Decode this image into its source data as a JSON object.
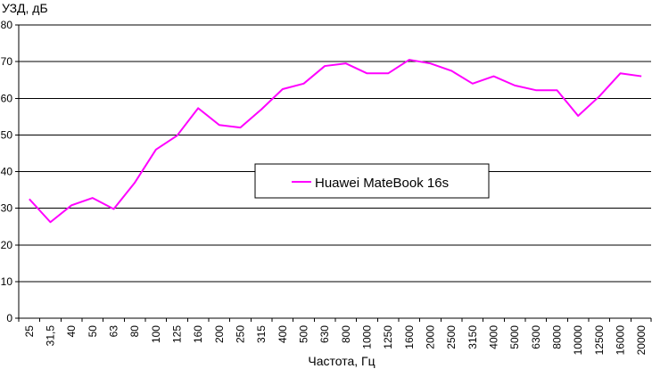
{
  "chart_data": {
    "type": "line",
    "title": "",
    "xlabel": "Частота, Гц",
    "ylabel": "УЗД, дБ",
    "ylim": [
      0,
      80
    ],
    "yticks": [
      0,
      10,
      20,
      30,
      40,
      50,
      60,
      70,
      80
    ],
    "grid": "horizontal",
    "legend_position": "center",
    "categories": [
      "25",
      "31,5",
      "40",
      "50",
      "63",
      "80",
      "100",
      "125",
      "160",
      "200",
      "250",
      "315",
      "400",
      "500",
      "630",
      "800",
      "1000",
      "1250",
      "1600",
      "2000",
      "2500",
      "3150",
      "4000",
      "5000",
      "6300",
      "8000",
      "10000",
      "12500",
      "16000",
      "20000"
    ],
    "series": [
      {
        "name": "Huawei MateBook 16s",
        "color": "#ff00ff",
        "values": [
          32.5,
          26.2,
          30.8,
          32.8,
          29.8,
          37.0,
          46.0,
          49.8,
          57.3,
          52.7,
          52.0,
          57.0,
          62.5,
          64.0,
          68.8,
          69.5,
          66.8,
          66.8,
          70.5,
          69.5,
          67.5,
          64.0,
          66.0,
          63.5,
          62.2,
          62.2,
          55.2,
          60.5,
          66.8,
          66.0
        ]
      }
    ]
  }
}
